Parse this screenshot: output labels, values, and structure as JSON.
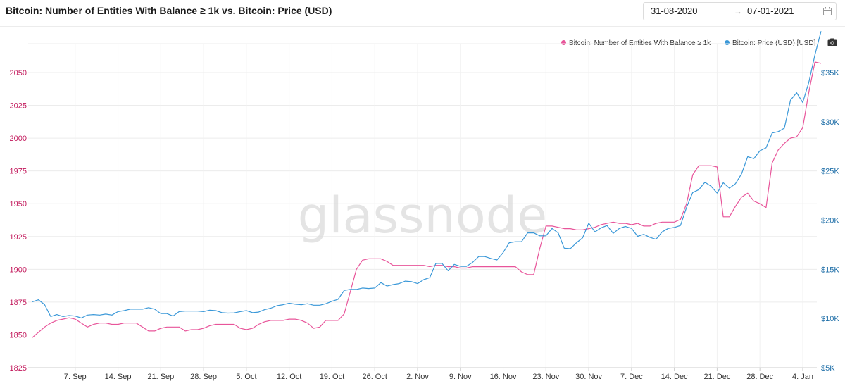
{
  "header": {
    "title": "Bitcoin: Number of Entities With Balance ≥ 1k vs. Bitcoin: Price (USD)",
    "date_start": "31-08-2020",
    "date_end": "07-01-2021"
  },
  "watermark": "glassnode",
  "chart_data": {
    "type": "line",
    "title": "Bitcoin: Number of Entities With Balance ≥ 1k vs. Bitcoin: Price (USD)",
    "legend_position": "top-right",
    "grid": true,
    "x": {
      "start": "2020-08-31",
      "end": "2021-01-07",
      "tick_labels": [
        "7. Sep",
        "14. Sep",
        "21. Sep",
        "28. Sep",
        "5. Oct",
        "12. Oct",
        "19. Oct",
        "26. Oct",
        "2. Nov",
        "9. Nov",
        "16. Nov",
        "23. Nov",
        "30. Nov",
        "7. Dec",
        "14. Dec",
        "21. Dec",
        "28. Dec",
        "4. Jan"
      ]
    },
    "y_left": {
      "ylim": [
        1825,
        2065
      ],
      "ticks": [
        1825,
        1850,
        1875,
        1900,
        1925,
        1950,
        1975,
        2000,
        2025,
        2050
      ],
      "tick_labels": [
        "1825",
        "1850",
        "1875",
        "1900",
        "1925",
        "1950",
        "1975",
        "2000",
        "2025",
        "2050"
      ]
    },
    "y_right": {
      "ylim": [
        5000,
        37000
      ],
      "ticks": [
        5000,
        10000,
        15000,
        20000,
        25000,
        30000,
        35000
      ],
      "tick_labels": [
        "$5K",
        "$10K",
        "$15K",
        "$20K",
        "$25K",
        "$30K",
        "$35K"
      ]
    },
    "series": [
      {
        "name": "Bitcoin: Number of Entities With Balance ≥ 1k",
        "axis": "left",
        "color": "#e8559a",
        "points": [
          [
            "2020-08-31",
            1848
          ],
          [
            "2020-09-01",
            1852
          ],
          [
            "2020-09-02",
            1856
          ],
          [
            "2020-09-03",
            1859
          ],
          [
            "2020-09-04",
            1861
          ],
          [
            "2020-09-05",
            1862
          ],
          [
            "2020-09-06",
            1863
          ],
          [
            "2020-09-07",
            1862
          ],
          [
            "2020-09-08",
            1859
          ],
          [
            "2020-09-09",
            1856
          ],
          [
            "2020-09-10",
            1858
          ],
          [
            "2020-09-11",
            1859
          ],
          [
            "2020-09-12",
            1859
          ],
          [
            "2020-09-13",
            1858
          ],
          [
            "2020-09-14",
            1858
          ],
          [
            "2020-09-15",
            1859
          ],
          [
            "2020-09-16",
            1859
          ],
          [
            "2020-09-17",
            1859
          ],
          [
            "2020-09-18",
            1856
          ],
          [
            "2020-09-19",
            1853
          ],
          [
            "2020-09-20",
            1853
          ],
          [
            "2020-09-21",
            1855
          ],
          [
            "2020-09-22",
            1856
          ],
          [
            "2020-09-23",
            1856
          ],
          [
            "2020-09-24",
            1856
          ],
          [
            "2020-09-25",
            1853
          ],
          [
            "2020-09-26",
            1854
          ],
          [
            "2020-09-27",
            1854
          ],
          [
            "2020-09-28",
            1855
          ],
          [
            "2020-09-29",
            1857
          ],
          [
            "2020-09-30",
            1858
          ],
          [
            "2020-10-01",
            1858
          ],
          [
            "2020-10-02",
            1858
          ],
          [
            "2020-10-03",
            1858
          ],
          [
            "2020-10-04",
            1855
          ],
          [
            "2020-10-05",
            1854
          ],
          [
            "2020-10-06",
            1855
          ],
          [
            "2020-10-07",
            1858
          ],
          [
            "2020-10-08",
            1860
          ],
          [
            "2020-10-09",
            1861
          ],
          [
            "2020-10-10",
            1861
          ],
          [
            "2020-10-11",
            1861
          ],
          [
            "2020-10-12",
            1862
          ],
          [
            "2020-10-13",
            1862
          ],
          [
            "2020-10-14",
            1861
          ],
          [
            "2020-10-15",
            1859
          ],
          [
            "2020-10-16",
            1855
          ],
          [
            "2020-10-17",
            1856
          ],
          [
            "2020-10-18",
            1861
          ],
          [
            "2020-10-19",
            1861
          ],
          [
            "2020-10-20",
            1861
          ],
          [
            "2020-10-21",
            1866
          ],
          [
            "2020-10-22",
            1883
          ],
          [
            "2020-10-23",
            1900
          ],
          [
            "2020-10-24",
            1907
          ],
          [
            "2020-10-25",
            1908
          ],
          [
            "2020-10-26",
            1908
          ],
          [
            "2020-10-27",
            1908
          ],
          [
            "2020-10-28",
            1906
          ],
          [
            "2020-10-29",
            1903
          ],
          [
            "2020-10-30",
            1903
          ],
          [
            "2020-10-31",
            1903
          ],
          [
            "2020-11-01",
            1903
          ],
          [
            "2020-11-02",
            1903
          ],
          [
            "2020-11-03",
            1903
          ],
          [
            "2020-11-04",
            1902
          ],
          [
            "2020-11-05",
            1903
          ],
          [
            "2020-11-06",
            1903
          ],
          [
            "2020-11-07",
            1902
          ],
          [
            "2020-11-08",
            1902
          ],
          [
            "2020-11-09",
            1901
          ],
          [
            "2020-11-10",
            1901
          ],
          [
            "2020-11-11",
            1902
          ],
          [
            "2020-11-12",
            1902
          ],
          [
            "2020-11-13",
            1902
          ],
          [
            "2020-11-14",
            1902
          ],
          [
            "2020-11-15",
            1902
          ],
          [
            "2020-11-16",
            1902
          ],
          [
            "2020-11-17",
            1902
          ],
          [
            "2020-11-18",
            1902
          ],
          [
            "2020-11-19",
            1898
          ],
          [
            "2020-11-20",
            1896
          ],
          [
            "2020-11-21",
            1896
          ],
          [
            "2020-11-22",
            1916
          ],
          [
            "2020-11-23",
            1933
          ],
          [
            "2020-11-24",
            1933
          ],
          [
            "2020-11-25",
            1932
          ],
          [
            "2020-11-26",
            1931
          ],
          [
            "2020-11-27",
            1931
          ],
          [
            "2020-11-28",
            1930
          ],
          [
            "2020-11-29",
            1930
          ],
          [
            "2020-11-30",
            1931
          ],
          [
            "2020-12-01",
            1932
          ],
          [
            "2020-12-02",
            1934
          ],
          [
            "2020-12-03",
            1935
          ],
          [
            "2020-12-04",
            1936
          ],
          [
            "2020-12-05",
            1935
          ],
          [
            "2020-12-06",
            1935
          ],
          [
            "2020-12-07",
            1934
          ],
          [
            "2020-12-08",
            1935
          ],
          [
            "2020-12-09",
            1933
          ],
          [
            "2020-12-10",
            1933
          ],
          [
            "2020-12-11",
            1935
          ],
          [
            "2020-12-12",
            1936
          ],
          [
            "2020-12-13",
            1936
          ],
          [
            "2020-12-14",
            1936
          ],
          [
            "2020-12-15",
            1938
          ],
          [
            "2020-12-16",
            1950
          ],
          [
            "2020-12-17",
            1972
          ],
          [
            "2020-12-18",
            1979
          ],
          [
            "2020-12-19",
            1979
          ],
          [
            "2020-12-20",
            1979
          ],
          [
            "2020-12-21",
            1978
          ],
          [
            "2020-12-22",
            1940
          ],
          [
            "2020-12-23",
            1940
          ],
          [
            "2020-12-24",
            1948
          ],
          [
            "2020-12-25",
            1955
          ],
          [
            "2020-12-26",
            1958
          ],
          [
            "2020-12-27",
            1952
          ],
          [
            "2020-12-28",
            1950
          ],
          [
            "2020-12-29",
            1947
          ],
          [
            "2020-12-30",
            1981
          ],
          [
            "2020-12-31",
            1991
          ],
          [
            "2021-01-01",
            1996
          ],
          [
            "2021-01-02",
            2000
          ],
          [
            "2021-01-03",
            2001
          ],
          [
            "2021-01-04",
            2008
          ],
          [
            "2021-01-05",
            2035
          ],
          [
            "2021-01-06",
            2058
          ],
          [
            "2021-01-07",
            2057
          ]
        ]
      },
      {
        "name": "Bitcoin: Price (USD) [USD]",
        "axis": "right",
        "color": "#3a98d8",
        "points": [
          [
            "2020-08-31",
            11700
          ],
          [
            "2020-09-01",
            11900
          ],
          [
            "2020-09-02",
            11400
          ],
          [
            "2020-09-03",
            10200
          ],
          [
            "2020-09-04",
            10400
          ],
          [
            "2020-09-05",
            10200
          ],
          [
            "2020-09-06",
            10300
          ],
          [
            "2020-09-07",
            10250
          ],
          [
            "2020-09-08",
            10050
          ],
          [
            "2020-09-09",
            10350
          ],
          [
            "2020-09-10",
            10400
          ],
          [
            "2020-09-11",
            10350
          ],
          [
            "2020-09-12",
            10450
          ],
          [
            "2020-09-13",
            10350
          ],
          [
            "2020-09-14",
            10700
          ],
          [
            "2020-09-15",
            10800
          ],
          [
            "2020-09-16",
            10950
          ],
          [
            "2020-09-17",
            10950
          ],
          [
            "2020-09-18",
            10950
          ],
          [
            "2020-09-19",
            11100
          ],
          [
            "2020-09-20",
            10950
          ],
          [
            "2020-09-21",
            10500
          ],
          [
            "2020-09-22",
            10500
          ],
          [
            "2020-09-23",
            10250
          ],
          [
            "2020-09-24",
            10700
          ],
          [
            "2020-09-25",
            10750
          ],
          [
            "2020-09-26",
            10750
          ],
          [
            "2020-09-27",
            10750
          ],
          [
            "2020-09-28",
            10700
          ],
          [
            "2020-09-29",
            10850
          ],
          [
            "2020-09-30",
            10800
          ],
          [
            "2020-10-01",
            10600
          ],
          [
            "2020-10-02",
            10550
          ],
          [
            "2020-10-03",
            10570
          ],
          [
            "2020-10-04",
            10700
          ],
          [
            "2020-10-05",
            10800
          ],
          [
            "2020-10-06",
            10600
          ],
          [
            "2020-10-07",
            10650
          ],
          [
            "2020-10-08",
            10900
          ],
          [
            "2020-10-09",
            11050
          ],
          [
            "2020-10-10",
            11300
          ],
          [
            "2020-10-11",
            11400
          ],
          [
            "2020-10-12",
            11550
          ],
          [
            "2020-10-13",
            11450
          ],
          [
            "2020-10-14",
            11400
          ],
          [
            "2020-10-15",
            11500
          ],
          [
            "2020-10-16",
            11350
          ],
          [
            "2020-10-17",
            11350
          ],
          [
            "2020-10-18",
            11500
          ],
          [
            "2020-10-19",
            11750
          ],
          [
            "2020-10-20",
            11950
          ],
          [
            "2020-10-21",
            12850
          ],
          [
            "2020-10-22",
            12950
          ],
          [
            "2020-10-23",
            12950
          ],
          [
            "2020-10-24",
            13100
          ],
          [
            "2020-10-25",
            13050
          ],
          [
            "2020-10-26",
            13100
          ],
          [
            "2020-10-27",
            13650
          ],
          [
            "2020-10-28",
            13300
          ],
          [
            "2020-10-29",
            13450
          ],
          [
            "2020-10-30",
            13550
          ],
          [
            "2020-10-31",
            13800
          ],
          [
            "2020-11-01",
            13750
          ],
          [
            "2020-11-02",
            13550
          ],
          [
            "2020-11-03",
            13950
          ],
          [
            "2020-11-04",
            14150
          ],
          [
            "2020-11-05",
            15600
          ],
          [
            "2020-11-06",
            15600
          ],
          [
            "2020-11-07",
            14850
          ],
          [
            "2020-11-08",
            15500
          ],
          [
            "2020-11-09",
            15300
          ],
          [
            "2020-11-10",
            15300
          ],
          [
            "2020-11-11",
            15700
          ],
          [
            "2020-11-12",
            16300
          ],
          [
            "2020-11-13",
            16300
          ],
          [
            "2020-11-14",
            16100
          ],
          [
            "2020-11-15",
            15950
          ],
          [
            "2020-11-16",
            16700
          ],
          [
            "2020-11-17",
            17700
          ],
          [
            "2020-11-18",
            17800
          ],
          [
            "2020-11-19",
            17800
          ],
          [
            "2020-11-20",
            18700
          ],
          [
            "2020-11-21",
            18700
          ],
          [
            "2020-11-22",
            18400
          ],
          [
            "2020-11-23",
            18400
          ],
          [
            "2020-11-24",
            19150
          ],
          [
            "2020-11-25",
            18700
          ],
          [
            "2020-11-26",
            17150
          ],
          [
            "2020-11-27",
            17100
          ],
          [
            "2020-11-28",
            17700
          ],
          [
            "2020-11-29",
            18200
          ],
          [
            "2020-11-30",
            19700
          ],
          [
            "2020-12-01",
            18800
          ],
          [
            "2020-12-02",
            19200
          ],
          [
            "2020-12-03",
            19450
          ],
          [
            "2020-12-04",
            18650
          ],
          [
            "2020-12-05",
            19150
          ],
          [
            "2020-12-06",
            19350
          ],
          [
            "2020-12-07",
            19150
          ],
          [
            "2020-12-08",
            18350
          ],
          [
            "2020-12-09",
            18550
          ],
          [
            "2020-12-10",
            18250
          ],
          [
            "2020-12-11",
            18050
          ],
          [
            "2020-12-12",
            18800
          ],
          [
            "2020-12-13",
            19150
          ],
          [
            "2020-12-14",
            19250
          ],
          [
            "2020-12-15",
            19450
          ],
          [
            "2020-12-16",
            21300
          ],
          [
            "2020-12-17",
            22800
          ],
          [
            "2020-12-18",
            23100
          ],
          [
            "2020-12-19",
            23850
          ],
          [
            "2020-12-20",
            23450
          ],
          [
            "2020-12-21",
            22750
          ],
          [
            "2020-12-22",
            23800
          ],
          [
            "2020-12-23",
            23250
          ],
          [
            "2020-12-24",
            23700
          ],
          [
            "2020-12-25",
            24700
          ],
          [
            "2020-12-26",
            26450
          ],
          [
            "2020-12-27",
            26250
          ],
          [
            "2020-12-28",
            27050
          ],
          [
            "2020-12-29",
            27350
          ],
          [
            "2020-12-30",
            28850
          ],
          [
            "2020-12-31",
            29000
          ],
          [
            "2021-01-01",
            29350
          ],
          [
            "2021-01-02",
            32200
          ],
          [
            "2021-01-03",
            32950
          ],
          [
            "2021-01-04",
            31950
          ],
          [
            "2021-01-05",
            34000
          ],
          [
            "2021-01-06",
            36800
          ],
          [
            "2021-01-07",
            39200
          ]
        ]
      }
    ]
  }
}
